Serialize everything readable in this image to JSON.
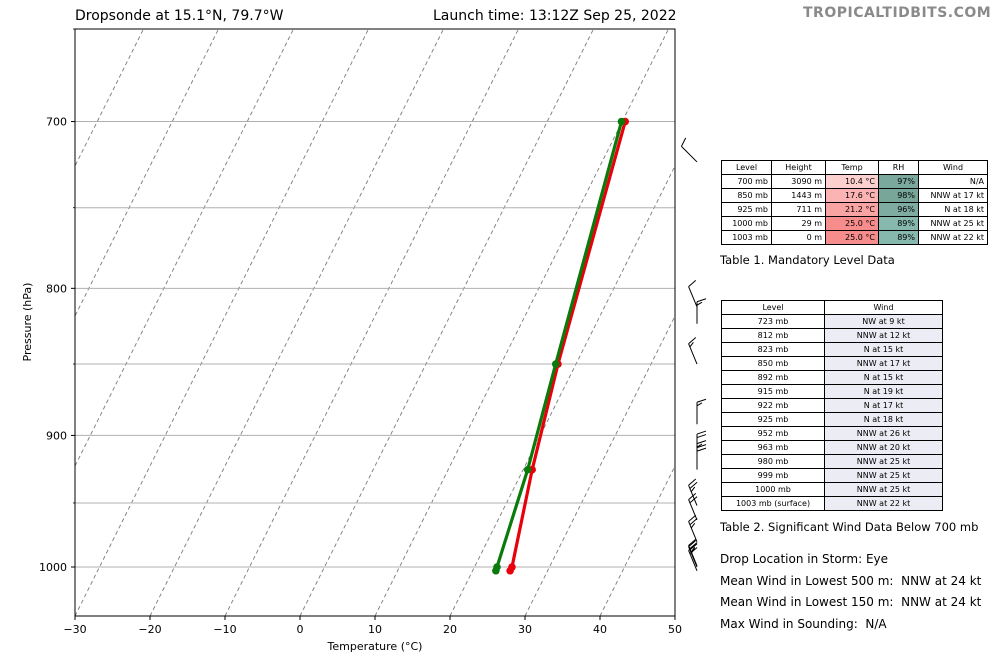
{
  "header": {
    "title_left": "Dropsonde at 15.1°N, 79.7°W",
    "title_right": "Launch time: 13:12Z Sep 25, 2022",
    "brand": "TROPICALTIDBITS.COM"
  },
  "chart_data": {
    "type": "line",
    "xlabel": "Temperature (°C)",
    "ylabel": "Pressure (hPa)",
    "xlim": [
      -30,
      50
    ],
    "ylim": [
      1040,
      650
    ],
    "yscale": "log",
    "x_ticks": [
      "−30",
      "−20",
      "−10",
      "0",
      "10",
      "20",
      "30",
      "40",
      "50"
    ],
    "y_ticks": [
      "700",
      "800",
      "900",
      "1000"
    ],
    "grid": "horizontal pressure lines and dashed skewed isotherms",
    "series": [
      {
        "color": "#e8000b",
        "p": [
          700,
          850,
          925,
          1000,
          1003
        ],
        "t": [
          10.4,
          17.6,
          21.2,
          25.0,
          25.0
        ]
      },
      {
        "color": "#0a7a0a",
        "p": [
          700,
          850,
          925,
          1000,
          1003
        ],
        "t": [
          9.9,
          17.3,
          20.6,
          23.0,
          23.1
        ]
      }
    ],
    "wind_barbs": [
      {
        "p": 723,
        "dir": "NW",
        "kt": 9
      },
      {
        "p": 812,
        "dir": "NNW",
        "kt": 12
      },
      {
        "p": 823,
        "dir": "N",
        "kt": 15
      },
      {
        "p": 850,
        "dir": "NNW",
        "kt": 17
      },
      {
        "p": 892,
        "dir": "N",
        "kt": 15
      },
      {
        "p": 915,
        "dir": "N",
        "kt": 19
      },
      {
        "p": 922,
        "dir": "N",
        "kt": 17
      },
      {
        "p": 925,
        "dir": "N",
        "kt": 18
      },
      {
        "p": 952,
        "dir": "NNW",
        "kt": 26
      },
      {
        "p": 963,
        "dir": "NNW",
        "kt": 20
      },
      {
        "p": 980,
        "dir": "NNW",
        "kt": 25
      },
      {
        "p": 999,
        "dir": "NNW",
        "kt": 25
      },
      {
        "p": 1000,
        "dir": "NNW",
        "kt": 25
      },
      {
        "p": 1003,
        "dir": "NNW",
        "kt": 22
      }
    ]
  },
  "table1": {
    "headers": [
      "Level",
      "Height",
      "Temp",
      "RH",
      "Wind"
    ],
    "rows": [
      {
        "level": "700 mb",
        "height": "3090 m",
        "temp": "10.4 °C",
        "rh": "97%",
        "wind": "N/A",
        "temp_color": "#fdd0d0",
        "rh_color": "#7aa89c"
      },
      {
        "level": "850 mb",
        "height": "1443 m",
        "temp": "17.6 °C",
        "rh": "98%",
        "wind": "NNW at 17 kt",
        "temp_color": "#fbb3b3",
        "rh_color": "#78a699"
      },
      {
        "level": "925 mb",
        "height": "711 m",
        "temp": "21.2 °C",
        "rh": "96%",
        "wind": "N at 18 kt",
        "temp_color": "#f9a3a3",
        "rh_color": "#7eaca0"
      },
      {
        "level": "1000 mb",
        "height": "29 m",
        "temp": "25.0 °C",
        "rh": "89%",
        "wind": "NNW at 25 kt",
        "temp_color": "#f78c8c",
        "rh_color": "#86b8ad"
      },
      {
        "level": "1003 mb",
        "height": "0 m",
        "temp": "25.0 °C",
        "rh": "89%",
        "wind": "NNW at 22 kt",
        "temp_color": "#f78c8c",
        "rh_color": "#86b8ad"
      }
    ],
    "caption": "Table 1. Mandatory Level Data"
  },
  "table2": {
    "headers": [
      "Level",
      "Wind"
    ],
    "rows": [
      {
        "level": "723 mb",
        "wind": "NW at 9 kt"
      },
      {
        "level": "812 mb",
        "wind": "NNW at 12 kt"
      },
      {
        "level": "823 mb",
        "wind": "N at 15 kt"
      },
      {
        "level": "850 mb",
        "wind": "NNW at 17 kt"
      },
      {
        "level": "892 mb",
        "wind": "N at 15 kt"
      },
      {
        "level": "915 mb",
        "wind": "N at 19 kt"
      },
      {
        "level": "922 mb",
        "wind": "N at 17 kt"
      },
      {
        "level": "925 mb",
        "wind": "N at 18 kt"
      },
      {
        "level": "952 mb",
        "wind": "NNW at 26 kt"
      },
      {
        "level": "963 mb",
        "wind": "NNW at 20 kt"
      },
      {
        "level": "980 mb",
        "wind": "NNW at 25 kt"
      },
      {
        "level": "999 mb",
        "wind": "NNW at 25 kt"
      },
      {
        "level": "1000 mb",
        "wind": "NNW at 25 kt"
      },
      {
        "level": "1003 mb (surface)",
        "wind": "NNW at 22 kt"
      }
    ],
    "caption": "Table 2. Significant Wind Data Below 700 mb"
  },
  "info": {
    "drop_location": "Drop Location in Storm: Eye",
    "mean_500": "Mean Wind in Lowest 500 m:  NNW at 24 kt",
    "mean_150": "Mean Wind in Lowest 150 m:  NNW at 24 kt",
    "max_wind": "Max Wind in Sounding:  N/A"
  }
}
